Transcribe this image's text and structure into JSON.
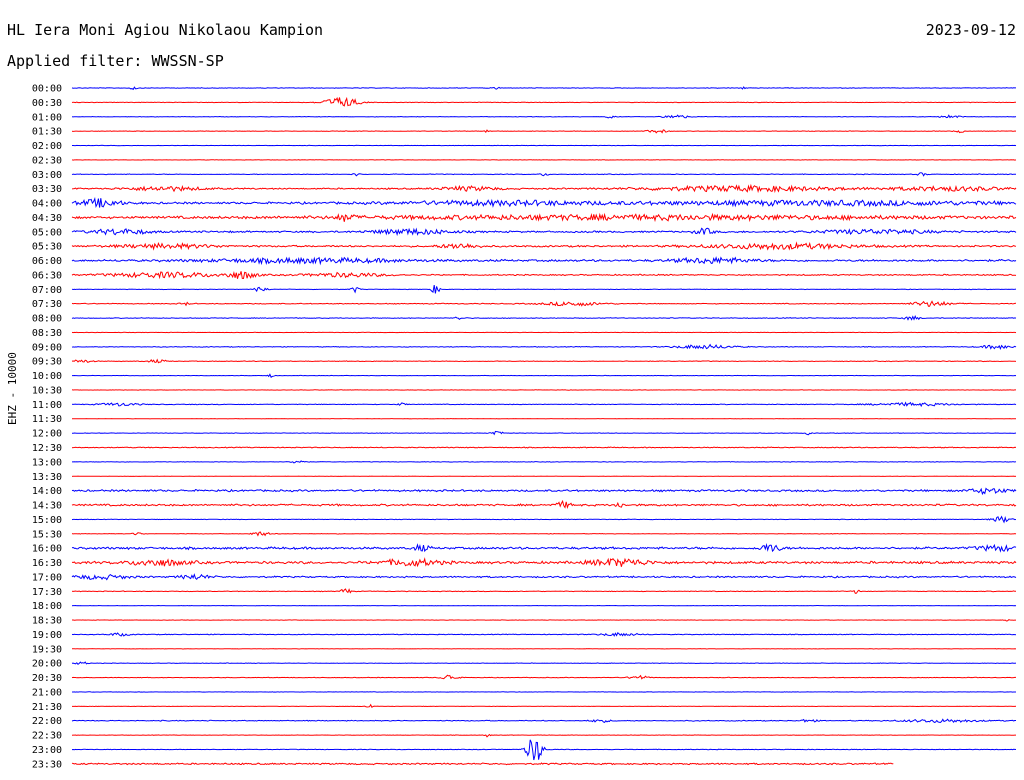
{
  "header": {
    "station": "HL Iera Moni Agiou Nikolaou Kampion",
    "date": "2023-09-12",
    "filter": "Applied filter: WWSSN-SP"
  },
  "chart_data": {
    "type": "line",
    "channel_label": "EHZ - 10000",
    "colors": {
      "even": "#0000ff",
      "odd": "#ff0000"
    },
    "rows": [
      {
        "time": "00:00",
        "noise": 0.3,
        "bursts": [
          {
            "x": 0.065,
            "amp": 1.5,
            "w": 0.004
          },
          {
            "x": 0.45,
            "amp": 1.5,
            "w": 0.003
          },
          {
            "x": 0.71,
            "amp": 1.2,
            "w": 0.003
          }
        ]
      },
      {
        "time": "00:30",
        "noise": 0.3,
        "bursts": [
          {
            "x": 0.285,
            "amp": 5,
            "w": 0.018
          }
        ]
      },
      {
        "time": "01:00",
        "noise": 0.3,
        "bursts": [
          {
            "x": 0.57,
            "amp": 1.5,
            "w": 0.004
          },
          {
            "x": 0.64,
            "amp": 2,
            "w": 0.012
          },
          {
            "x": 0.93,
            "amp": 1.5,
            "w": 0.01
          }
        ]
      },
      {
        "time": "01:30",
        "noise": 0.3,
        "bursts": [
          {
            "x": 0.44,
            "amp": 1.5,
            "w": 0.003
          },
          {
            "x": 0.62,
            "amp": 1.8,
            "w": 0.01
          },
          {
            "x": 0.94,
            "amp": 1.5,
            "w": 0.005
          }
        ]
      },
      {
        "time": "02:00",
        "noise": 0.2,
        "bursts": []
      },
      {
        "time": "02:30",
        "noise": 0.2,
        "bursts": []
      },
      {
        "time": "03:00",
        "noise": 0.4,
        "bursts": [
          {
            "x": 0.3,
            "amp": 1.5,
            "w": 0.004
          },
          {
            "x": 0.5,
            "amp": 1.5,
            "w": 0.004
          },
          {
            "x": 0.9,
            "amp": 1.5,
            "w": 0.005
          }
        ]
      },
      {
        "time": "03:30",
        "noise": 0.8,
        "bursts": [
          {
            "x": 0.1,
            "amp": 2,
            "w": 0.04
          },
          {
            "x": 0.42,
            "amp": 2,
            "w": 0.03
          },
          {
            "x": 0.71,
            "amp": 2.5,
            "w": 0.1
          },
          {
            "x": 0.93,
            "amp": 2,
            "w": 0.06
          }
        ]
      },
      {
        "time": "04:00",
        "noise": 1.2,
        "bursts": [
          {
            "x": 0.03,
            "amp": 4,
            "w": 0.02
          },
          {
            "x": 0.45,
            "amp": 2,
            "w": 0.1
          },
          {
            "x": 0.8,
            "amp": 2,
            "w": 0.2
          }
        ]
      },
      {
        "time": "04:30",
        "noise": 1.3,
        "bursts": [
          {
            "x": 0.29,
            "amp": 3.5,
            "w": 0.008
          },
          {
            "x": 0.6,
            "amp": 2,
            "w": 0.3
          }
        ]
      },
      {
        "time": "05:00",
        "noise": 1.0,
        "bursts": [
          {
            "x": 0.05,
            "amp": 2.5,
            "w": 0.03
          },
          {
            "x": 0.36,
            "amp": 2.5,
            "w": 0.04
          },
          {
            "x": 0.67,
            "amp": 3,
            "w": 0.01
          },
          {
            "x": 0.85,
            "amp": 2,
            "w": 0.06
          }
        ]
      },
      {
        "time": "05:30",
        "noise": 1.0,
        "bursts": [
          {
            "x": 0.1,
            "amp": 2,
            "w": 0.05
          },
          {
            "x": 0.41,
            "amp": 2.5,
            "w": 0.02
          },
          {
            "x": 0.75,
            "amp": 2.5,
            "w": 0.08
          }
        ]
      },
      {
        "time": "06:00",
        "noise": 1.2,
        "bursts": [
          {
            "x": 0.25,
            "amp": 2,
            "w": 0.1
          },
          {
            "x": 0.68,
            "amp": 2.5,
            "w": 0.04
          }
        ]
      },
      {
        "time": "06:30",
        "noise": 0.7,
        "bursts": [
          {
            "x": 0.1,
            "amp": 2.5,
            "w": 0.06
          },
          {
            "x": 0.18,
            "amp": 3.5,
            "w": 0.015
          },
          {
            "x": 0.29,
            "amp": 2,
            "w": 0.04
          }
        ]
      },
      {
        "time": "07:00",
        "noise": 0.3,
        "bursts": [
          {
            "x": 0.2,
            "amp": 3,
            "w": 0.006
          },
          {
            "x": 0.3,
            "amp": 3,
            "w": 0.004
          },
          {
            "x": 0.385,
            "amp": 4.5,
            "w": 0.004
          }
        ]
      },
      {
        "time": "07:30",
        "noise": 0.5,
        "bursts": [
          {
            "x": 0.12,
            "amp": 1.5,
            "w": 0.005
          },
          {
            "x": 0.53,
            "amp": 2,
            "w": 0.03
          },
          {
            "x": 0.91,
            "amp": 2.5,
            "w": 0.02
          }
        ]
      },
      {
        "time": "08:00",
        "noise": 0.4,
        "bursts": [
          {
            "x": 0.41,
            "amp": 1.5,
            "w": 0.005
          },
          {
            "x": 0.89,
            "amp": 2,
            "w": 0.008
          }
        ]
      },
      {
        "time": "08:30",
        "noise": 0.2,
        "bursts": []
      },
      {
        "time": "09:00",
        "noise": 0.4,
        "bursts": [
          {
            "x": 0.67,
            "amp": 2,
            "w": 0.03
          },
          {
            "x": 0.98,
            "amp": 2,
            "w": 0.015
          }
        ]
      },
      {
        "time": "09:30",
        "noise": 0.4,
        "bursts": [
          {
            "x": 0.01,
            "amp": 1.5,
            "w": 0.01
          },
          {
            "x": 0.09,
            "amp": 1.5,
            "w": 0.01
          }
        ]
      },
      {
        "time": "10:00",
        "noise": 0.2,
        "bursts": [
          {
            "x": 0.21,
            "amp": 2,
            "w": 0.003
          }
        ]
      },
      {
        "time": "10:30",
        "noise": 0.2,
        "bursts": []
      },
      {
        "time": "11:00",
        "noise": 0.4,
        "bursts": [
          {
            "x": 0.05,
            "amp": 1.5,
            "w": 0.02
          },
          {
            "x": 0.35,
            "amp": 1.5,
            "w": 0.004
          },
          {
            "x": 0.89,
            "amp": 1.5,
            "w": 0.04
          }
        ]
      },
      {
        "time": "11:30",
        "noise": 0.2,
        "bursts": []
      },
      {
        "time": "12:00",
        "noise": 0.3,
        "bursts": [
          {
            "x": 0.45,
            "amp": 2.5,
            "w": 0.006
          },
          {
            "x": 0.78,
            "amp": 1.5,
            "w": 0.003
          }
        ]
      },
      {
        "time": "12:30",
        "noise": 0.5,
        "bursts": []
      },
      {
        "time": "13:00",
        "noise": 0.3,
        "bursts": [
          {
            "x": 0.24,
            "amp": 2.5,
            "w": 0.006
          }
        ]
      },
      {
        "time": "13:30",
        "noise": 0.2,
        "bursts": []
      },
      {
        "time": "14:00",
        "noise": 1.1,
        "bursts": [
          {
            "x": 0.97,
            "amp": 2.5,
            "w": 0.02
          }
        ]
      },
      {
        "time": "14:30",
        "noise": 1.1,
        "bursts": [
          {
            "x": 0.52,
            "amp": 3,
            "w": 0.008
          },
          {
            "x": 0.58,
            "amp": 2.5,
            "w": 0.005
          }
        ]
      },
      {
        "time": "15:00",
        "noise": 0.3,
        "bursts": [
          {
            "x": 0.985,
            "amp": 3,
            "w": 0.01
          }
        ]
      },
      {
        "time": "15:30",
        "noise": 0.3,
        "bursts": [
          {
            "x": 0.07,
            "amp": 1.5,
            "w": 0.005
          },
          {
            "x": 0.2,
            "amp": 2,
            "w": 0.01
          }
        ]
      },
      {
        "time": "16:00",
        "noise": 1.3,
        "bursts": [
          {
            "x": 0.37,
            "amp": 3,
            "w": 0.008
          },
          {
            "x": 0.74,
            "amp": 4,
            "w": 0.01
          },
          {
            "x": 0.98,
            "amp": 2.5,
            "w": 0.02
          }
        ]
      },
      {
        "time": "16:30",
        "noise": 1.4,
        "bursts": [
          {
            "x": 0.09,
            "amp": 3,
            "w": 0.03
          },
          {
            "x": 0.36,
            "amp": 3,
            "w": 0.03
          },
          {
            "x": 0.58,
            "amp": 3.5,
            "w": 0.03
          }
        ]
      },
      {
        "time": "17:00",
        "noise": 0.9,
        "bursts": [
          {
            "x": 0.03,
            "amp": 2,
            "w": 0.03
          },
          {
            "x": 0.13,
            "amp": 2.5,
            "w": 0.015
          }
        ]
      },
      {
        "time": "17:30",
        "noise": 0.4,
        "bursts": [
          {
            "x": 0.29,
            "amp": 3,
            "w": 0.005
          },
          {
            "x": 0.83,
            "amp": 2,
            "w": 0.004
          }
        ]
      },
      {
        "time": "18:00",
        "noise": 0.2,
        "bursts": []
      },
      {
        "time": "18:30",
        "noise": 0.2,
        "bursts": [
          {
            "x": 0.99,
            "amp": 1.5,
            "w": 0.003
          }
        ]
      },
      {
        "time": "19:00",
        "noise": 0.4,
        "bursts": [
          {
            "x": 0.05,
            "amp": 1.5,
            "w": 0.01
          },
          {
            "x": 0.58,
            "amp": 1.5,
            "w": 0.02
          }
        ]
      },
      {
        "time": "19:30",
        "noise": 0.2,
        "bursts": []
      },
      {
        "time": "20:00",
        "noise": 0.3,
        "bursts": [
          {
            "x": 0.01,
            "amp": 1.5,
            "w": 0.006
          }
        ]
      },
      {
        "time": "20:30",
        "noise": 0.3,
        "bursts": [
          {
            "x": 0.4,
            "amp": 3,
            "w": 0.008
          },
          {
            "x": 0.6,
            "amp": 2,
            "w": 0.01
          }
        ]
      },
      {
        "time": "21:00",
        "noise": 0.2,
        "bursts": []
      },
      {
        "time": "21:30",
        "noise": 0.2,
        "bursts": [
          {
            "x": 0.315,
            "amp": 2,
            "w": 0.003
          }
        ]
      },
      {
        "time": "22:00",
        "noise": 0.5,
        "bursts": [
          {
            "x": 0.56,
            "amp": 1.5,
            "w": 0.01
          },
          {
            "x": 0.78,
            "amp": 1.5,
            "w": 0.008
          },
          {
            "x": 0.92,
            "amp": 1.5,
            "w": 0.04
          }
        ]
      },
      {
        "time": "22:30",
        "noise": 0.2,
        "bursts": [
          {
            "x": 0.44,
            "amp": 2,
            "w": 0.003
          }
        ]
      },
      {
        "time": "23:00",
        "noise": 0.3,
        "bursts": [
          {
            "x": 0.49,
            "amp": 14,
            "w": 0.008
          }
        ]
      },
      {
        "time": "23:30",
        "noise": 0.9,
        "bursts": [],
        "end": 0.87
      }
    ]
  }
}
